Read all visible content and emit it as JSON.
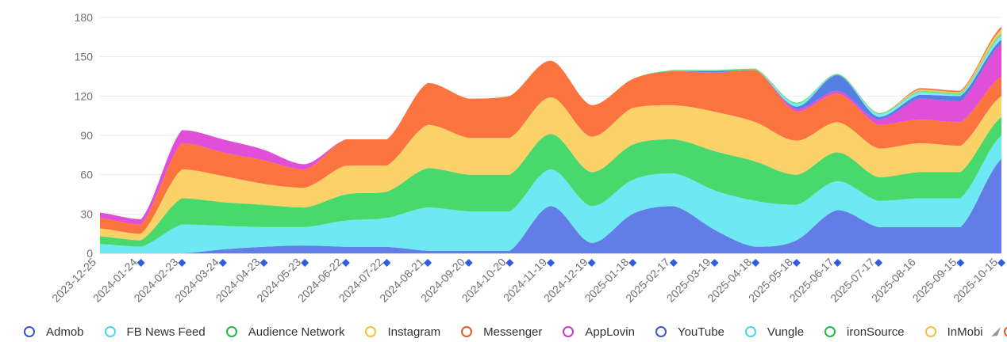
{
  "chart_data": {
    "type": "area",
    "stacked": true,
    "smooth": true,
    "title": "",
    "xlabel": "",
    "ylabel": "",
    "ylim": [
      0,
      180
    ],
    "yticks": [
      "0",
      "30",
      "60",
      "90",
      "120",
      "150",
      "180"
    ],
    "grid": true,
    "legend_position": "bottom",
    "x": [
      "2023-12-25",
      "2024-01-24",
      "2024-02-23",
      "2024-03-24",
      "2024-04-23",
      "2024-05-23",
      "2024-06-22",
      "2024-07-22",
      "2024-08-21",
      "2024-09-20",
      "2024-10-20",
      "2024-11-19",
      "2024-12-19",
      "2025-01-18",
      "2025-02-17",
      "2025-03-19",
      "2025-04-18",
      "2025-05-18",
      "2025-06-17",
      "2025-07-17",
      "2025-08-16",
      "2025-09-15",
      "2025-10-15"
    ],
    "x_marked": [
      false,
      true,
      true,
      true,
      true,
      true,
      true,
      true,
      true,
      true,
      true,
      true,
      true,
      true,
      true,
      true,
      true,
      true,
      true,
      true,
      false,
      true,
      true
    ],
    "series": [
      {
        "name": "Admob",
        "color": "#5b76e6",
        "values": [
          0,
          0,
          0,
          3,
          5,
          6,
          5,
          5,
          2,
          2,
          2,
          36,
          8,
          30,
          36,
          18,
          5,
          10,
          33,
          20,
          20,
          20,
          72
        ]
      },
      {
        "name": "FB News Feed",
        "color": "#66e8f2",
        "values": [
          7,
          5,
          22,
          18,
          15,
          14,
          20,
          22,
          33,
          30,
          30,
          28,
          28,
          26,
          25,
          30,
          35,
          27,
          22,
          20,
          22,
          22,
          18
        ]
      },
      {
        "name": "Audience Network",
        "color": "#3ed663",
        "values": [
          6,
          5,
          20,
          18,
          17,
          15,
          20,
          20,
          30,
          28,
          28,
          27,
          26,
          27,
          26,
          30,
          30,
          23,
          22,
          18,
          20,
          20,
          14
        ]
      },
      {
        "name": "Instagram",
        "color": "#fbd060",
        "values": [
          6,
          5,
          22,
          20,
          16,
          15,
          22,
          20,
          33,
          28,
          28,
          28,
          27,
          28,
          26,
          30,
          30,
          26,
          23,
          22,
          22,
          20,
          16
        ]
      },
      {
        "name": "Messenger",
        "color": "#fb6d35",
        "values": [
          8,
          7,
          20,
          18,
          18,
          14,
          20,
          20,
          32,
          30,
          32,
          28,
          24,
          22,
          26,
          30,
          40,
          22,
          22,
          18,
          18,
          18,
          15
        ]
      },
      {
        "name": "AppLovin",
        "color": "#de46d5",
        "values": [
          4,
          4,
          10,
          10,
          8,
          4,
          0,
          0,
          0,
          0,
          0,
          0,
          0,
          0,
          0,
          0,
          0,
          2,
          2,
          4,
          16,
          16,
          25
        ]
      },
      {
        "name": "YouTube",
        "color": "#4c78e0",
        "values": [
          0,
          0,
          0,
          0,
          0,
          0,
          0,
          0,
          0,
          0,
          0,
          0,
          0,
          0,
          0,
          1,
          0,
          2,
          12,
          2,
          3,
          4,
          3
        ]
      },
      {
        "name": "Vungle",
        "color": "#7ae8f5",
        "values": [
          0,
          0,
          0,
          0,
          0,
          0,
          0,
          0,
          0,
          0,
          0,
          0,
          0,
          0,
          0,
          0,
          0,
          2,
          0,
          2,
          2,
          1,
          3
        ]
      },
      {
        "name": "ironSource",
        "color": "#5ce07a",
        "values": [
          0,
          0,
          0,
          0,
          0,
          0,
          0,
          0,
          0,
          0,
          0,
          0,
          0,
          0,
          1,
          1,
          1,
          1,
          1,
          1,
          1,
          1,
          2
        ]
      },
      {
        "name": "InMobi",
        "color": "#f5c84d",
        "values": [
          0,
          0,
          0,
          0,
          0,
          0,
          0,
          0,
          0,
          0,
          0,
          0,
          0,
          0,
          0,
          0,
          0,
          0,
          0,
          0,
          1,
          1,
          3
        ]
      },
      {
        "name": "",
        "color": "#f06a3c",
        "values": [
          0,
          0,
          0,
          0,
          0,
          0,
          0,
          0,
          0,
          0,
          0,
          0,
          0,
          0,
          0,
          0,
          0,
          0,
          0,
          0,
          1,
          1,
          2
        ]
      }
    ]
  },
  "legend": {
    "items": [
      {
        "label": "Admob",
        "color": "#3a56c8"
      },
      {
        "label": "FB News Feed",
        "color": "#4fd6e6"
      },
      {
        "label": "Audience Network",
        "color": "#23b84a"
      },
      {
        "label": "Instagram",
        "color": "#f2c144"
      },
      {
        "label": "Messenger",
        "color": "#e65c28"
      },
      {
        "label": "AppLovin",
        "color": "#c83ac0"
      },
      {
        "label": "YouTube",
        "color": "#3a56c8"
      },
      {
        "label": "Vungle",
        "color": "#4fd6e6"
      },
      {
        "label": "ironSource",
        "color": "#23b84a"
      },
      {
        "label": "InMobi",
        "color": "#f2c144"
      },
      {
        "label": "",
        "color": "#e65c28"
      }
    ],
    "more_icon": "arrow-right-icon"
  }
}
